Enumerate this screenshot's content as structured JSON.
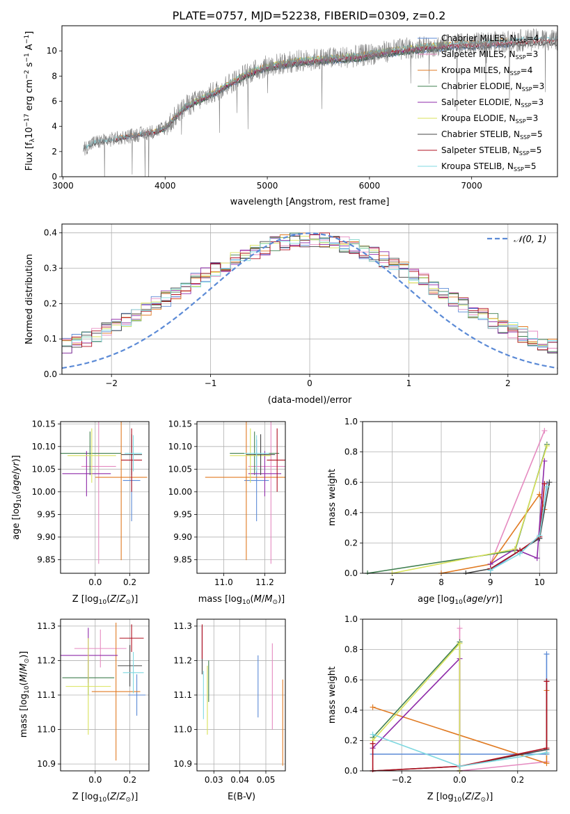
{
  "title": "PLATE=0757, MJD=52238, FIBERID=0309, z=0.2",
  "colors": {
    "chabrier_miles": "#5b8ad6",
    "salpeter_miles": "#e58ac0",
    "kroupa_miles": "#e07a22",
    "chabrier_elodie": "#3f7f4f",
    "salpeter_elodie": "#8e2aa8",
    "kroupa_elodie": "#d9e25a",
    "chabrier_stelib": "#444444",
    "salpeter_stelib": "#b01020",
    "kroupa_stelib": "#7fd8e0",
    "data": "#808080"
  },
  "chart_data": [
    {
      "id": "spectrum",
      "type": "line",
      "title": "PLATE=0757, MJD=52238, FIBERID=0309, z=0.2",
      "xlabel": "wavelength [Angstrom, rest frame]",
      "ylabel": "Flux [f_λ 10^-17 erg cm^-2 s^-1 A^-1]",
      "xlim": [
        2990,
        7840
      ],
      "ylim": [
        0,
        12
      ],
      "xticks": [
        "3000",
        "4000",
        "5000",
        "6000",
        "7000"
      ],
      "yticks": [
        "0",
        "2",
        "4",
        "6",
        "8",
        "10"
      ],
      "legend_position": "top-right",
      "legend": [
        {
          "imf": "Chabrier MILES",
          "n": "4"
        },
        {
          "imf": "Salpeter MILES",
          "n": "3"
        },
        {
          "imf": "Kroupa MILES",
          "n": "4"
        },
        {
          "imf": "Chabrier ELODIE",
          "n": "3"
        },
        {
          "imf": "Salpeter ELODIE",
          "n": "3"
        },
        {
          "imf": "Kroupa ELODIE",
          "n": "3"
        },
        {
          "imf": "Chabrier STELIB",
          "n": "5"
        },
        {
          "imf": "Salpeter STELIB",
          "n": "5"
        },
        {
          "imf": "Kroupa STELIB",
          "n": "5"
        }
      ],
      "n_label": "N",
      "n_sub": "SSP",
      "continuum": {
        "wavelength": [
          3200,
          3300,
          3500,
          3700,
          3900,
          4000,
          4200,
          4500,
          4800,
          5000,
          5300,
          5600,
          5900,
          6200,
          6500,
          6800,
          7100,
          7400,
          7700
        ],
        "flux": [
          2.2,
          2.7,
          3.0,
          3.3,
          3.6,
          3.9,
          5.6,
          6.8,
          8.2,
          8.8,
          9.2,
          9.4,
          9.6,
          10.0,
          10.3,
          10.5,
          10.6,
          10.8,
          10.9
        ]
      }
    },
    {
      "id": "residuals",
      "type": "line",
      "xlabel": "(data-model)/error",
      "ylabel": "Normed distribution",
      "xlim": [
        -2.5,
        2.5
      ],
      "ylim": [
        0,
        0.425
      ],
      "xticks": [
        "−2",
        "−1",
        "0",
        "1",
        "2"
      ],
      "yticks": [
        "0.0",
        "0.1",
        "0.2",
        "0.3",
        "0.4"
      ],
      "grid": true,
      "legend_position": "top-right",
      "legend_label": "𝒩(0, 1)",
      "bin_width": 0.1
    },
    {
      "id": "age_vs_z",
      "type": "scatter",
      "xlabel": "Z [log₁₀(Z/Z☉)]",
      "ylabel": "age  [log₁₀(age/yr)]",
      "xlim": [
        -0.2,
        0.31
      ],
      "ylim": [
        9.82,
        10.155
      ],
      "xticks": [
        "0.0",
        "0.2"
      ],
      "yticks": [
        "9.85",
        "9.90",
        "9.95",
        "10.00",
        "10.05",
        "10.10",
        "10.15"
      ],
      "grid": true,
      "points": [
        {
          "series": "chabrier_miles",
          "x": 0.21,
          "y": 10.025,
          "xerr": 0.05,
          "yerr": 0.09
        },
        {
          "series": "salpeter_miles",
          "x": 0.02,
          "y": 10.056,
          "xerr": 0.1,
          "yerr": 0.215
        },
        {
          "series": "kroupa_miles",
          "x": 0.15,
          "y": 10.032,
          "xerr": 0.15,
          "yerr": 0.183
        },
        {
          "series": "chabrier_elodie",
          "x": -0.03,
          "y": 10.085,
          "xerr": 0.18,
          "yerr": 0.048
        },
        {
          "series": "salpeter_elodie",
          "x": -0.05,
          "y": 10.04,
          "xerr": 0.14,
          "yerr": 0.05
        },
        {
          "series": "kroupa_elodie",
          "x": -0.02,
          "y": 10.08,
          "xerr": 0.14,
          "yerr": 0.06
        },
        {
          "series": "chabrier_stelib",
          "x": 0.21,
          "y": 10.082,
          "xerr": 0.06,
          "yerr": 0.045
        },
        {
          "series": "salpeter_stelib",
          "x": 0.21,
          "y": 10.07,
          "xerr": 0.06,
          "yerr": 0.07
        },
        {
          "series": "kroupa_stelib",
          "x": 0.22,
          "y": 10.085,
          "xerr": 0.05,
          "yerr": 0.04
        }
      ]
    },
    {
      "id": "age_vs_mass",
      "type": "scatter",
      "xlabel": "mass [log₁₀(M/M☉)]",
      "ylabel": "",
      "xlim": [
        10.87,
        11.3
      ],
      "ylim": [
        9.82,
        10.155
      ],
      "xticks": [
        "11.0",
        "11.2"
      ],
      "yticks": [
        "9.85",
        "9.90",
        "9.95",
        "10.00",
        "10.05",
        "10.10",
        "10.15"
      ],
      "grid": true,
      "points": [
        {
          "series": "chabrier_miles",
          "x": 11.16,
          "y": 10.025,
          "xerr": 0.06,
          "yerr": 0.09
        },
        {
          "series": "salpeter_miles",
          "x": 11.23,
          "y": 10.056,
          "xerr": 0.11,
          "yerr": 0.215
        },
        {
          "series": "kroupa_miles",
          "x": 11.11,
          "y": 10.032,
          "xerr": 0.2,
          "yerr": 0.183
        },
        {
          "series": "chabrier_elodie",
          "x": 11.15,
          "y": 10.085,
          "xerr": 0.12,
          "yerr": 0.048
        },
        {
          "series": "salpeter_elodie",
          "x": 11.2,
          "y": 10.04,
          "xerr": 0.08,
          "yerr": 0.05
        },
        {
          "series": "kroupa_elodie",
          "x": 11.13,
          "y": 10.08,
          "xerr": 0.1,
          "yerr": 0.06
        },
        {
          "series": "chabrier_stelib",
          "x": 11.18,
          "y": 10.082,
          "xerr": 0.07,
          "yerr": 0.045
        },
        {
          "series": "salpeter_stelib",
          "x": 11.26,
          "y": 10.07,
          "xerr": 0.05,
          "yerr": 0.07
        },
        {
          "series": "kroupa_stelib",
          "x": 11.16,
          "y": 10.085,
          "xerr": 0.06,
          "yerr": 0.04
        }
      ]
    },
    {
      "id": "weight_vs_age",
      "type": "line",
      "xlabel": "age  [log₁₀(age/yr)]",
      "ylabel": "mass weight",
      "xlim": [
        6.4,
        10.35
      ],
      "ylim": [
        0,
        1.0
      ],
      "xticks": [
        "7",
        "8",
        "9",
        "10"
      ],
      "yticks": [
        "0.0",
        "0.2",
        "0.4",
        "0.6",
        "0.8",
        "1.0"
      ],
      "grid": true,
      "series": [
        {
          "key": "chabrier_miles",
          "points": [
            [
              9.0,
              0.02
            ],
            [
              9.6,
              0.15
            ],
            [
              10.0,
              0.23
            ],
            [
              10.15,
              0.59
            ]
          ]
        },
        {
          "key": "salpeter_miles",
          "points": [
            [
              9.0,
              0.06
            ],
            [
              10.1,
              0.94
            ]
          ]
        },
        {
          "key": "kroupa_miles",
          "points": [
            [
              8.0,
              0.0
            ],
            [
              9.0,
              0.06
            ],
            [
              10.0,
              0.52
            ],
            [
              10.1,
              0.42
            ]
          ]
        },
        {
          "key": "chabrier_elodie",
          "points": [
            [
              6.5,
              0.0
            ],
            [
              9.5,
              0.15
            ],
            [
              10.15,
              0.85
            ]
          ]
        },
        {
          "key": "salpeter_elodie",
          "points": [
            [
              9.0,
              0.06
            ],
            [
              9.5,
              0.16
            ],
            [
              9.95,
              0.1
            ],
            [
              10.1,
              0.74
            ]
          ]
        },
        {
          "key": "kroupa_elodie",
          "points": [
            [
              7.0,
              0.0
            ],
            [
              9.5,
              0.16
            ],
            [
              10.15,
              0.84
            ]
          ]
        },
        {
          "key": "chabrier_stelib",
          "points": [
            [
              8.5,
              0.0
            ],
            [
              9.0,
              0.03
            ],
            [
              9.6,
              0.15
            ],
            [
              10.0,
              0.23
            ],
            [
              10.2,
              0.6
            ]
          ]
        },
        {
          "key": "salpeter_stelib",
          "points": [
            [
              9.0,
              0.03
            ],
            [
              9.6,
              0.15
            ],
            [
              10.0,
              0.24
            ],
            [
              10.1,
              0.59
            ]
          ]
        },
        {
          "key": "kroupa_stelib",
          "points": [
            [
              9.0,
              0.02
            ],
            [
              9.6,
              0.13
            ],
            [
              10.0,
              0.25
            ],
            [
              10.15,
              0.57
            ]
          ]
        }
      ]
    },
    {
      "id": "mass_vs_z",
      "type": "scatter",
      "xlabel": "Z [log₁₀(Z/Z☉)]",
      "ylabel": "mass [log₁₀(M/M☉)]",
      "xlim": [
        -0.2,
        0.31
      ],
      "ylim": [
        10.88,
        11.32
      ],
      "xticks": [
        "0.0",
        "0.2"
      ],
      "yticks": [
        "10.9",
        "11.0",
        "11.1",
        "11.2",
        "11.3"
      ],
      "grid": true,
      "points": [
        {
          "series": "chabrier_miles",
          "x": 0.24,
          "y": 11.1,
          "xerr": 0.05,
          "yerr": 0.06
        },
        {
          "series": "salpeter_miles",
          "x": 0.03,
          "y": 11.235,
          "xerr": 0.15,
          "yerr": 0.055
        },
        {
          "series": "kroupa_miles",
          "x": 0.12,
          "y": 11.11,
          "xerr": 0.14,
          "yerr": 0.2
        },
        {
          "series": "chabrier_elodie",
          "x": -0.04,
          "y": 11.15,
          "xerr": 0.15,
          "yerr": 0.05
        },
        {
          "series": "salpeter_elodie",
          "x": -0.04,
          "y": 11.215,
          "xerr": 0.17,
          "yerr": 0.08
        },
        {
          "series": "kroupa_elodie",
          "x": -0.04,
          "y": 11.125,
          "xerr": 0.13,
          "yerr": 0.14
        },
        {
          "series": "chabrier_stelib",
          "x": 0.2,
          "y": 11.185,
          "xerr": 0.07,
          "yerr": 0.06
        },
        {
          "series": "salpeter_stelib",
          "x": 0.21,
          "y": 11.265,
          "xerr": 0.07,
          "yerr": 0.04
        },
        {
          "series": "kroupa_stelib",
          "x": 0.22,
          "y": 11.165,
          "xerr": 0.06,
          "yerr": 0.06
        }
      ]
    },
    {
      "id": "mass_vs_ebv",
      "type": "scatter",
      "xlabel": "E(B-V)",
      "ylabel": "",
      "xlim": [
        0.0235,
        0.0575
      ],
      "ylim": [
        10.88,
        11.32
      ],
      "xticks": [
        "0.03",
        "0.04",
        "0.05"
      ],
      "yticks": [
        "10.9",
        "11.0",
        "11.1",
        "11.2",
        "11.3"
      ],
      "grid": true,
      "points": [
        {
          "series": "chabrier_miles",
          "x": 0.047,
          "y": 11.125,
          "xerr": 0,
          "yerr": 0.09
        },
        {
          "series": "salpeter_miles",
          "x": 0.0525,
          "y": 11.125,
          "xerr": 0,
          "yerr": 0.125
        },
        {
          "series": "kroupa_miles",
          "x": 0.0565,
          "y": 11.02,
          "xerr": 0,
          "yerr": 0.125
        },
        {
          "series": "chabrier_elodie",
          "x": 0.028,
          "y": 11.14,
          "xerr": 0,
          "yerr": 0.06
        },
        {
          "series": "salpeter_elodie",
          "x": 0.0255,
          "y": 11.25,
          "xerr": 0,
          "yerr": 0.05
        },
        {
          "series": "kroupa_elodie",
          "x": 0.0275,
          "y": 11.085,
          "xerr": 0,
          "yerr": 0.1
        },
        {
          "series": "chabrier_stelib",
          "x": 0.0255,
          "y": 11.23,
          "xerr": 0,
          "yerr": 0.07
        },
        {
          "series": "salpeter_stelib",
          "x": 0.0255,
          "y": 11.255,
          "xerr": 0,
          "yerr": 0.05
        },
        {
          "series": "kroupa_stelib",
          "x": 0.026,
          "y": 11.1,
          "xerr": 0,
          "yerr": 0.07
        }
      ]
    },
    {
      "id": "weight_vs_z",
      "type": "line",
      "xlabel": "Z [log₁₀(Z/Z☉)]",
      "ylabel": "mass weight",
      "xlim": [
        -0.335,
        0.335
      ],
      "ylim": [
        0,
        1.0
      ],
      "xticks": [
        "−0.2",
        "0.0",
        "0.2"
      ],
      "yticks": [
        "0.0",
        "0.2",
        "0.4",
        "0.6",
        "0.8",
        "1.0"
      ],
      "grid": true,
      "series": [
        {
          "key": "chabrier_miles",
          "points": [
            [
              -0.3,
              0.11
            ],
            [
              0.0,
              0.11
            ],
            [
              0.3,
              0.11
            ],
            [
              0.3,
              0.77
            ]
          ]
        },
        {
          "key": "salpeter_miles",
          "points": [
            [
              0.0,
              0.94
            ],
            [
              0.0,
              0.0
            ],
            [
              0.3,
              0.06
            ]
          ]
        },
        {
          "key": "kroupa_miles",
          "points": [
            [
              -0.3,
              0.42
            ],
            [
              0.3,
              0.05
            ],
            [
              0.3,
              0.53
            ]
          ]
        },
        {
          "key": "chabrier_elodie",
          "points": [
            [
              -0.3,
              0.22
            ],
            [
              0.0,
              0.85
            ],
            [
              0.0,
              0.0
            ]
          ]
        },
        {
          "key": "salpeter_elodie",
          "points": [
            [
              -0.3,
              0.15
            ],
            [
              0.0,
              0.74
            ],
            [
              0.0,
              0.0
            ]
          ]
        },
        {
          "key": "kroupa_elodie",
          "points": [
            [
              -0.3,
              0.2
            ],
            [
              0.0,
              0.84
            ],
            [
              0.0,
              0.0
            ]
          ]
        },
        {
          "key": "chabrier_stelib",
          "points": [
            [
              -0.3,
              0.0
            ],
            [
              0.0,
              0.03
            ],
            [
              0.3,
              0.14
            ],
            [
              0.3,
              0.59
            ]
          ]
        },
        {
          "key": "salpeter_stelib",
          "points": [
            [
              -0.3,
              0.18
            ],
            [
              -0.3,
              0.0
            ],
            [
              0.0,
              0.03
            ],
            [
              0.3,
              0.15
            ],
            [
              0.3,
              0.59
            ]
          ]
        },
        {
          "key": "kroupa_stelib",
          "points": [
            [
              -0.3,
              0.24
            ],
            [
              0.0,
              0.03
            ],
            [
              0.3,
              0.12
            ]
          ]
        }
      ]
    }
  ]
}
